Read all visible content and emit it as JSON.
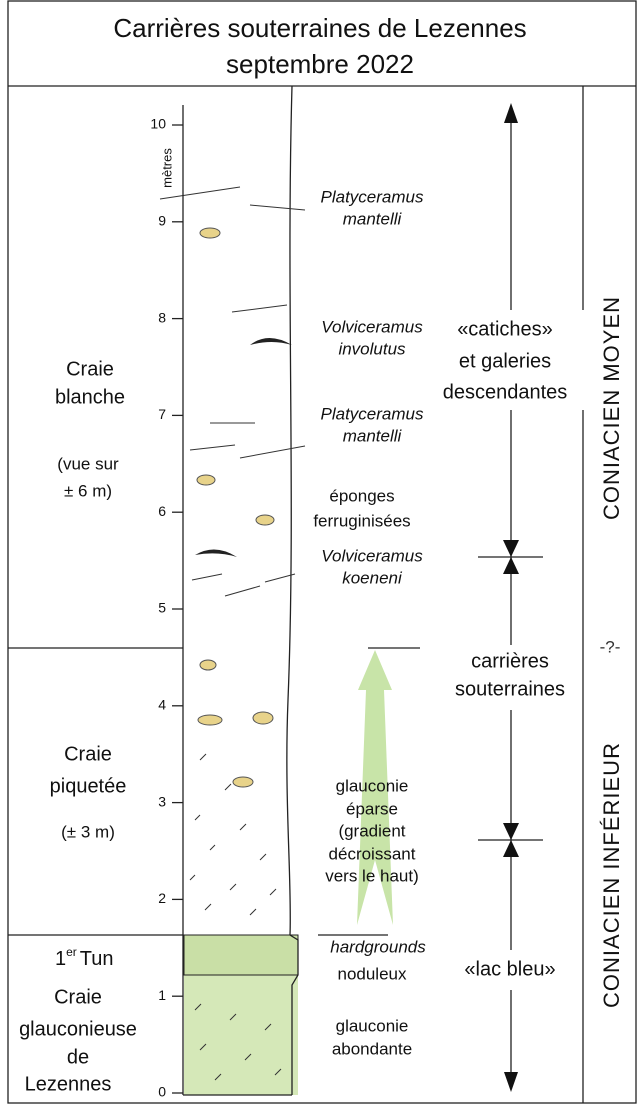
{
  "title": [
    "Carrières souterraines de Lezennes",
    "septembre 2022"
  ],
  "axis": {
    "unit": "mètres",
    "ticks": [
      0,
      1,
      2,
      3,
      4,
      5,
      6,
      7,
      8,
      9,
      10
    ]
  },
  "units": {
    "craie_blanche": {
      "name": [
        "Craie",
        "blanche"
      ],
      "note": [
        "(vue sur",
        "± 6 m)"
      ]
    },
    "craie_piquetee": {
      "name": [
        "Craie",
        "piquetée"
      ],
      "note": [
        "(± 3 m)"
      ]
    },
    "tun": {
      "number": "1",
      "sup": "er",
      "name": "Tun"
    },
    "craie_glauconieuse": {
      "name": [
        "Craie",
        "glauconieuse",
        "de",
        "Lezennes"
      ]
    }
  },
  "annotations": {
    "platyceramus_top": [
      "Platyceramus",
      "mantelli"
    ],
    "volviceramus_involutus": [
      "Volviceramus",
      "involutus"
    ],
    "platyceramus_mid": [
      "Platyceramus",
      "mantelli"
    ],
    "eponges": [
      "éponges",
      "ferruginisées"
    ],
    "volviceramus_koeneni": [
      "Volviceramus",
      "koeneni"
    ],
    "glauconie_eparse": [
      "glauconie",
      "éparse",
      "(gradient",
      "décroissant",
      "vers le haut)"
    ],
    "hardgrounds": [
      "hardgrounds",
      "noduleux"
    ],
    "glauconie_abondante": [
      "glauconie",
      "abondante"
    ]
  },
  "levels": {
    "catiches": [
      "«catiches»",
      "et galeries",
      "descendantes"
    ],
    "carrieres": [
      "carrières",
      "souterraines"
    ],
    "lac": [
      "«lac bleu»"
    ]
  },
  "stages": {
    "moyen": "CONIACIEN MOYEN",
    "boundary": "-?-",
    "inferieur": "CONIACIEN INFÉRIEUR"
  }
}
